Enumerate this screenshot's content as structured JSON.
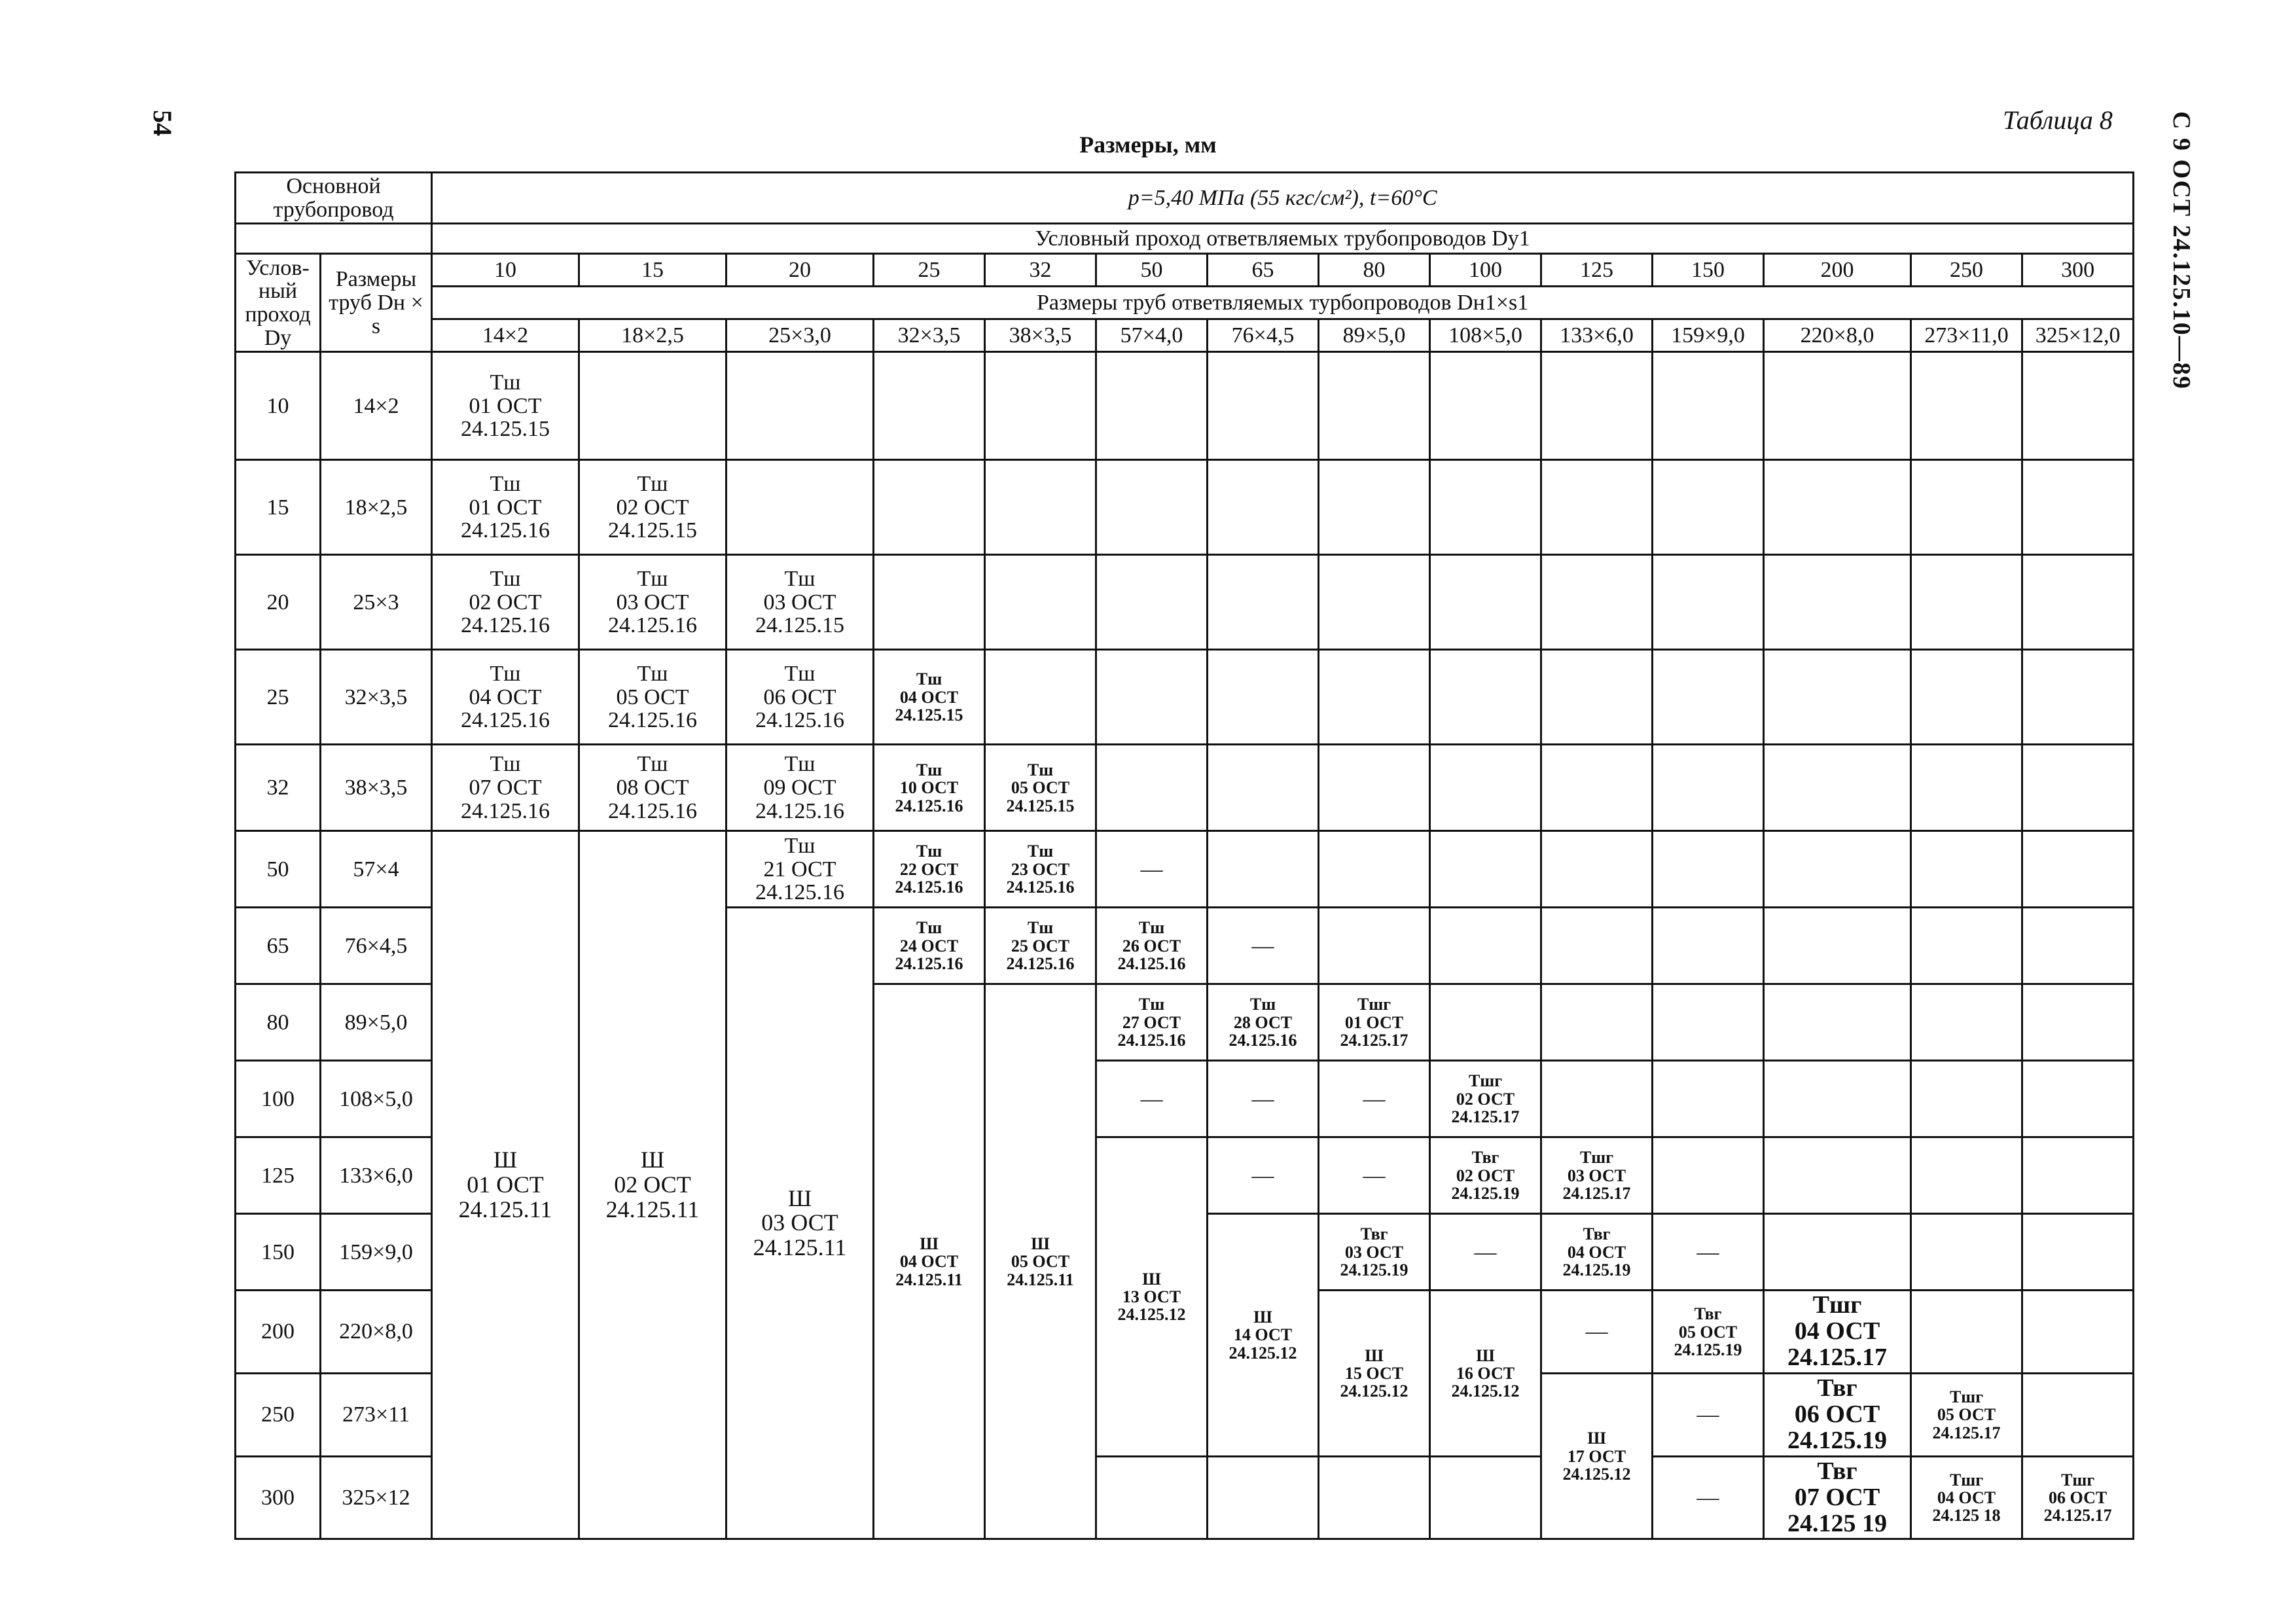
{
  "page_number": "54",
  "table_label": "Таблица 8",
  "doc_code": "С 9 ОСТ 24.125.10—89",
  "caption": "Размеры, мм",
  "header": {
    "main_pipe": "Основной трубопровод",
    "conditions": "p=5,40 МПа (55 кгс/см²), t=60°С",
    "branch_dn": "Условный проход ответвляемых трубопроводов Dу1",
    "main_dn": "Услов-ный проход Dу",
    "main_size": "Размеры труб Dн × s",
    "branch_sizes_label": "Размеры труб ответвляемых турбопроводов Dн1×s1",
    "branch_dn_values": [
      "10",
      "15",
      "20",
      "25",
      "32",
      "50",
      "65",
      "80",
      "100",
      "125",
      "150",
      "200",
      "250",
      "300"
    ],
    "branch_sizes": [
      "14×2",
      "18×2,5",
      "25×3,0",
      "32×3,5",
      "38×3,5",
      "57×4,0",
      "76×4,5",
      "89×5,0",
      "108×5,0",
      "133×6,0",
      "159×9,0",
      "220×8,0",
      "273×11,0",
      "325×12,0"
    ]
  },
  "rows": [
    {
      "dn": "10",
      "size": "14×2"
    },
    {
      "dn": "15",
      "size": "18×2,5"
    },
    {
      "dn": "20",
      "size": "25×3"
    },
    {
      "dn": "25",
      "size": "32×3,5"
    },
    {
      "dn": "32",
      "size": "38×3,5"
    },
    {
      "dn": "50",
      "size": "57×4"
    },
    {
      "dn": "65",
      "size": "76×4,5"
    },
    {
      "dn": "80",
      "size": "89×5,0"
    },
    {
      "dn": "100",
      "size": "108×5,0"
    },
    {
      "dn": "125",
      "size": "133×6,0"
    },
    {
      "dn": "150",
      "size": "159×9,0"
    },
    {
      "dn": "200",
      "size": "220×8,0"
    },
    {
      "dn": "250",
      "size": "273×11"
    },
    {
      "dn": "300",
      "size": "325×12"
    }
  ],
  "cells": {
    "r10c10": [
      "Тш",
      "01 ОСТ",
      "24.125.15"
    ],
    "r15c10": [
      "Тш",
      "01 ОСТ",
      "24.125.16"
    ],
    "r15c15": [
      "Тш",
      "02 ОСТ",
      "24.125.15"
    ],
    "r20c10": [
      "Тш",
      "02 ОСТ",
      "24.125.16"
    ],
    "r20c15": [
      "Тш",
      "03 ОСТ",
      "24.125.16"
    ],
    "r20c20": [
      "Тш",
      "03 ОСТ",
      "24.125.15"
    ],
    "r25c10": [
      "Тш",
      "04 ОСТ",
      "24.125.16"
    ],
    "r25c15": [
      "Тш",
      "05 ОСТ",
      "24.125.16"
    ],
    "r25c20": [
      "Тш",
      "06 ОСТ",
      "24.125.16"
    ],
    "r25c25": [
      "Тш",
      "04 ОСТ",
      "24.125.15"
    ],
    "r32c10": [
      "Тш",
      "07 ОСТ",
      "24.125.16"
    ],
    "r32c15": [
      "Тш",
      "08 ОСТ",
      "24.125.16"
    ],
    "r32c20": [
      "Тш",
      "09 ОСТ",
      "24.125.16"
    ],
    "r32c25": [
      "Тш",
      "10 ОСТ",
      "24.125.16"
    ],
    "r32c32": [
      "Тш",
      "05 ОСТ",
      "24.125.15"
    ],
    "col10_lower": [
      "Ш",
      "01 ОСТ",
      "24.125.11"
    ],
    "col15_lower": [
      "Ш",
      "02 ОСТ",
      "24.125.11"
    ],
    "r50c20": [
      "Тш",
      "21 ОСТ",
      "24.125.16"
    ],
    "col20_lower": [
      "Ш",
      "03 ОСТ",
      "24.125.11"
    ],
    "r50c25": [
      "Тш",
      "22 ОСТ",
      "24.125.16"
    ],
    "r50c32": [
      "Тш",
      "23 ОСТ",
      "24.125.16"
    ],
    "r50c50": "—",
    "r65c25": [
      "Тш",
      "24 ОСТ",
      "24.125.16"
    ],
    "r65c32": [
      "Тш",
      "25 ОСТ",
      "24.125.16"
    ],
    "r65c50": [
      "Тш",
      "26 ОСТ",
      "24.125.16"
    ],
    "r65c65": "—",
    "col25_lower": [
      "Ш",
      "04 ОСТ",
      "24.125.11"
    ],
    "col32_lower": [
      "Ш",
      "05 ОСТ",
      "24.125.11"
    ],
    "r80c50": [
      "Тш",
      "27 ОСТ",
      "24.125.16"
    ],
    "r80c65": [
      "Тш",
      "28 ОСТ",
      "24.125.16"
    ],
    "r80c80": [
      "Тшг",
      "01 ОСТ",
      "24.125.17"
    ],
    "r100c50": "—",
    "r100c65": "—",
    "r100c80": "—",
    "r100c100": [
      "Тшг",
      "02 ОСТ",
      "24.125.17"
    ],
    "col50_lower": [
      "Ш",
      "13 ОСТ",
      "24.125.12"
    ],
    "r125c65": "—",
    "r125c80": "—",
    "r125c100": [
      "Твг",
      "02 ОСТ",
      "24.125.19"
    ],
    "r125c125": [
      "Тшг",
      "03 ОСТ",
      "24.125.17"
    ],
    "col65_lower": [
      "Ш",
      "14 ОСТ",
      "24.125.12"
    ],
    "r150c80": [
      "Твг",
      "03 ОСТ",
      "24.125.19"
    ],
    "r150c100": "—",
    "r150c125": [
      "Твг",
      "04 ОСТ",
      "24.125.19"
    ],
    "r150c150": "—",
    "col80_lower": [
      "Ш",
      "15 ОСТ",
      "24.125.12"
    ],
    "col100_lower": [
      "Ш",
      "16 ОСТ",
      "24.125.12"
    ],
    "r200c125": "—",
    "r200c150": [
      "Твг",
      "05 ОСТ",
      "24.125.19"
    ],
    "r200c200": [
      "Тшг",
      "04 ОСТ",
      "24.125.17"
    ],
    "col125_lower": [
      "Ш",
      "17 ОСТ",
      "24.125.12"
    ],
    "r250c150": "—",
    "r250c200": [
      "Твг",
      "06 ОСТ",
      "24.125.19"
    ],
    "r250c250": [
      "Тшг",
      "05 ОСТ",
      "24.125.17"
    ],
    "r300c150": "—",
    "r300c200": [
      "Твг",
      "07 ОСТ",
      "24.125 19"
    ],
    "r300c250": [
      "Тшг",
      "04 ОСТ",
      "24.125 18"
    ],
    "r300c300": [
      "Тшг",
      "06 ОСТ",
      "24.125.17"
    ]
  }
}
